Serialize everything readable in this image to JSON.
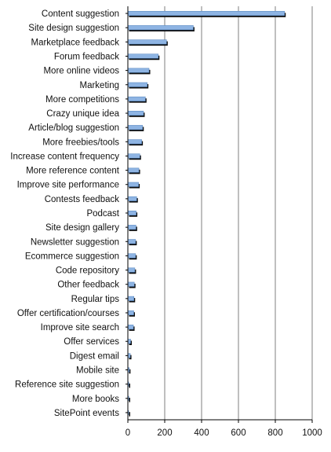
{
  "chart_data": {
    "type": "bar",
    "orientation": "horizontal",
    "title": "",
    "xlabel": "",
    "ylabel": "",
    "xlim": [
      0,
      1000
    ],
    "x_ticks": [
      0,
      200,
      400,
      600,
      800,
      1000
    ],
    "grid": "vertical",
    "legend": "none",
    "colors": {
      "bar_fill": "#8eb4e3",
      "bar_shadow": "#0d0d0d",
      "bar_edge": "#4f81bd",
      "grid": "#7f7f7f",
      "axis": "#000000"
    },
    "categories": [
      "Content suggestion",
      "Site design suggestion",
      "Marketplace feedback",
      "Forum feedback",
      "More online videos",
      "Marketing",
      "More competitions",
      "Crazy unique idea",
      "Article/blog suggestion",
      "More freebies/tools",
      "Increase content frequency",
      "More reference content",
      "Improve site performance",
      "Contests feedback",
      "Podcast",
      "Site design gallery",
      "Newsletter suggestion",
      "Ecommerce suggestion",
      "Code repository",
      "Other feedback",
      "Regular tips",
      "Offer certification/courses",
      "Improve site search",
      "Offer services",
      "Digest email",
      "Mobile site",
      "Reference site suggestion",
      "More books",
      "SitePoint events"
    ],
    "values": [
      850,
      355,
      210,
      165,
      115,
      105,
      95,
      85,
      80,
      75,
      65,
      60,
      58,
      48,
      45,
      44,
      42,
      42,
      38,
      35,
      33,
      32,
      30,
      15,
      13,
      8,
      5,
      5,
      4
    ]
  }
}
